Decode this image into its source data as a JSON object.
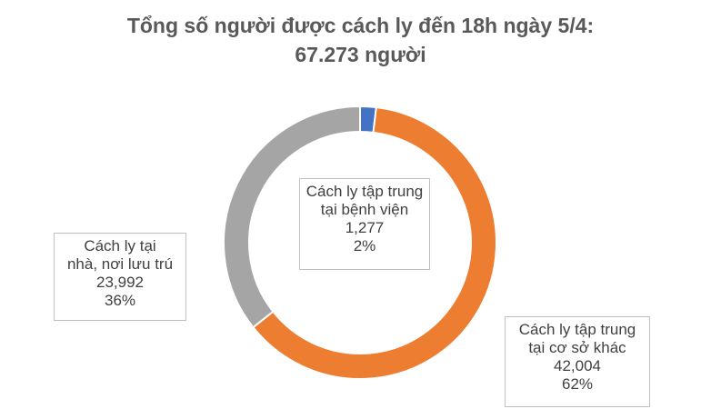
{
  "chart_data": {
    "type": "pie",
    "title_lines": [
      "Tổng số người được cách ly đến 18h ngày 5/4:",
      "67.273 người"
    ],
    "slices": [
      {
        "label_lines": [
          "Cách ly tập trung",
          "tại bệnh viện"
        ],
        "value": 1277,
        "value_text": "1,277",
        "percent_text": "2%",
        "color": "#4472c4"
      },
      {
        "label_lines": [
          "Cách ly tập trung",
          "tại cơ sở khác"
        ],
        "value": 42004,
        "value_text": "42,004",
        "percent_text": "62%",
        "color": "#ed7d31"
      },
      {
        "label_lines": [
          "Cách ly tại",
          "nhà, nơi lưu trú"
        ],
        "value": 23992,
        "value_text": "23,992",
        "percent_text": "36%",
        "color": "#a5a5a5"
      }
    ]
  }
}
